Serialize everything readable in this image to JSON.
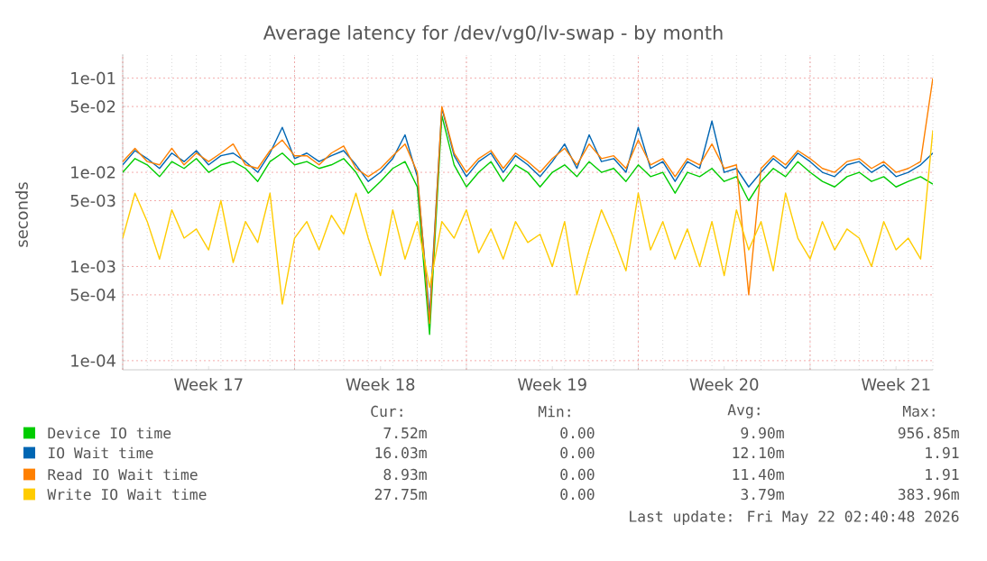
{
  "chart_data": {
    "type": "line",
    "title": "Average latency for /dev/vg0/lv-swap - by month",
    "ylabel": "seconds",
    "categories": [
      null,
      null,
      null,
      null,
      null,
      null,
      null,
      "Week 17",
      null,
      null,
      null,
      null,
      null,
      null,
      null,
      null,
      null,
      null,
      null,
      null,
      null,
      "Week 18",
      null,
      null,
      null,
      null,
      null,
      null,
      null,
      null,
      null,
      null,
      null,
      null,
      null,
      "Week 19",
      null,
      null,
      null,
      null,
      null,
      null,
      null,
      null,
      null,
      null,
      null,
      null,
      null,
      "Week 20",
      null,
      null,
      null,
      null,
      null,
      null,
      null,
      null,
      null,
      null,
      null,
      null,
      null,
      "Week 21",
      null,
      null,
      null
    ],
    "series": [
      {
        "name": "Device IO time",
        "color": "#00cc00",
        "values": [
          0.01,
          0.014,
          0.012,
          0.009,
          0.013,
          0.011,
          0.014,
          0.01,
          0.012,
          0.013,
          0.011,
          0.008,
          0.013,
          0.016,
          0.012,
          0.013,
          0.011,
          0.012,
          0.014,
          0.01,
          0.006,
          0.008,
          0.011,
          0.013,
          0.007,
          0.00019,
          0.04,
          0.012,
          0.007,
          0.01,
          0.013,
          0.008,
          0.012,
          0.01,
          0.007,
          0.01,
          0.012,
          0.009,
          0.013,
          0.01,
          0.011,
          0.008,
          0.012,
          0.009,
          0.01,
          0.006,
          0.01,
          0.009,
          0.011,
          0.008,
          0.009,
          0.005,
          0.008,
          0.011,
          0.009,
          0.013,
          0.01,
          0.008,
          0.007,
          0.009,
          0.01,
          0.008,
          0.009,
          0.007,
          0.008,
          0.009,
          0.0075
        ]
      },
      {
        "name": "IO Wait time",
        "color": "#0066b3",
        "values": [
          0.012,
          0.017,
          0.014,
          0.011,
          0.016,
          0.013,
          0.017,
          0.012,
          0.015,
          0.016,
          0.013,
          0.01,
          0.016,
          0.03,
          0.014,
          0.016,
          0.013,
          0.015,
          0.017,
          0.012,
          0.008,
          0.01,
          0.014,
          0.025,
          0.009,
          0.0003,
          0.048,
          0.015,
          0.009,
          0.013,
          0.016,
          0.01,
          0.015,
          0.012,
          0.009,
          0.013,
          0.02,
          0.011,
          0.025,
          0.013,
          0.014,
          0.01,
          0.03,
          0.011,
          0.013,
          0.008,
          0.013,
          0.011,
          0.035,
          0.01,
          0.011,
          0.007,
          0.01,
          0.014,
          0.011,
          0.016,
          0.013,
          0.01,
          0.009,
          0.012,
          0.013,
          0.01,
          0.012,
          0.009,
          0.01,
          0.012,
          0.016
        ]
      },
      {
        "name": "Read IO Wait time",
        "color": "#ff8000",
        "values": [
          0.013,
          0.018,
          0.013,
          0.012,
          0.018,
          0.012,
          0.016,
          0.013,
          0.016,
          0.02,
          0.012,
          0.011,
          0.017,
          0.022,
          0.015,
          0.015,
          0.012,
          0.016,
          0.019,
          0.011,
          0.009,
          0.011,
          0.015,
          0.02,
          0.01,
          0.00025,
          0.05,
          0.016,
          0.01,
          0.014,
          0.017,
          0.011,
          0.016,
          0.013,
          0.01,
          0.014,
          0.018,
          0.012,
          0.02,
          0.014,
          0.015,
          0.011,
          0.022,
          0.012,
          0.014,
          0.009,
          0.014,
          0.012,
          0.02,
          0.011,
          0.012,
          0.0005,
          0.011,
          0.015,
          0.012,
          0.017,
          0.014,
          0.011,
          0.01,
          0.013,
          0.014,
          0.011,
          0.013,
          0.01,
          0.011,
          0.013,
          0.1
        ]
      },
      {
        "name": "Write IO Wait time",
        "color": "#ffcc00",
        "values": [
          0.002,
          0.006,
          0.003,
          0.0012,
          0.004,
          0.002,
          0.0025,
          0.0015,
          0.005,
          0.0011,
          0.003,
          0.0018,
          0.006,
          0.0004,
          0.002,
          0.003,
          0.0015,
          0.0035,
          0.0022,
          0.006,
          0.002,
          0.0008,
          0.004,
          0.0012,
          0.003,
          0.0006,
          0.003,
          0.002,
          0.004,
          0.0014,
          0.0025,
          0.0012,
          0.003,
          0.0018,
          0.0022,
          0.001,
          0.003,
          0.0005,
          0.0015,
          0.004,
          0.002,
          0.0009,
          0.006,
          0.0015,
          0.003,
          0.0012,
          0.0025,
          0.001,
          0.003,
          0.0008,
          0.004,
          0.0015,
          0.003,
          0.0009,
          0.006,
          0.002,
          0.0012,
          0.003,
          0.0015,
          0.0025,
          0.002,
          0.001,
          0.003,
          0.0015,
          0.002,
          0.0012,
          0.028
        ]
      }
    ],
    "ylim": [
      8e-05,
      0.18
    ],
    "yticks": [
      {
        "value": 0.0001,
        "label": "1e-04"
      },
      {
        "value": 0.0005,
        "label": "5e-04"
      },
      {
        "value": 0.001,
        "label": "1e-03"
      },
      {
        "value": 0.005,
        "label": "5e-03"
      },
      {
        "value": 0.01,
        "label": "1e-02"
      },
      {
        "value": 0.05,
        "label": "5e-02"
      },
      {
        "value": 0.1,
        "label": "1e-01"
      }
    ],
    "log": "y",
    "grid": true,
    "legend": "bottom",
    "annotations": [
      "Cur:",
      "Min:",
      "Avg:",
      "Max:",
      "7.52m",
      "0.00",
      "9.90m",
      "956.85m",
      "16.03m",
      "0.00",
      "12.10m",
      "1.91",
      "8.93m",
      "0.00",
      "11.40m",
      "1.91",
      "27.75m",
      "0.00",
      "3.79m",
      "383.96m",
      "Last update: Fri May 22 02:40:48 2026"
    ]
  }
}
